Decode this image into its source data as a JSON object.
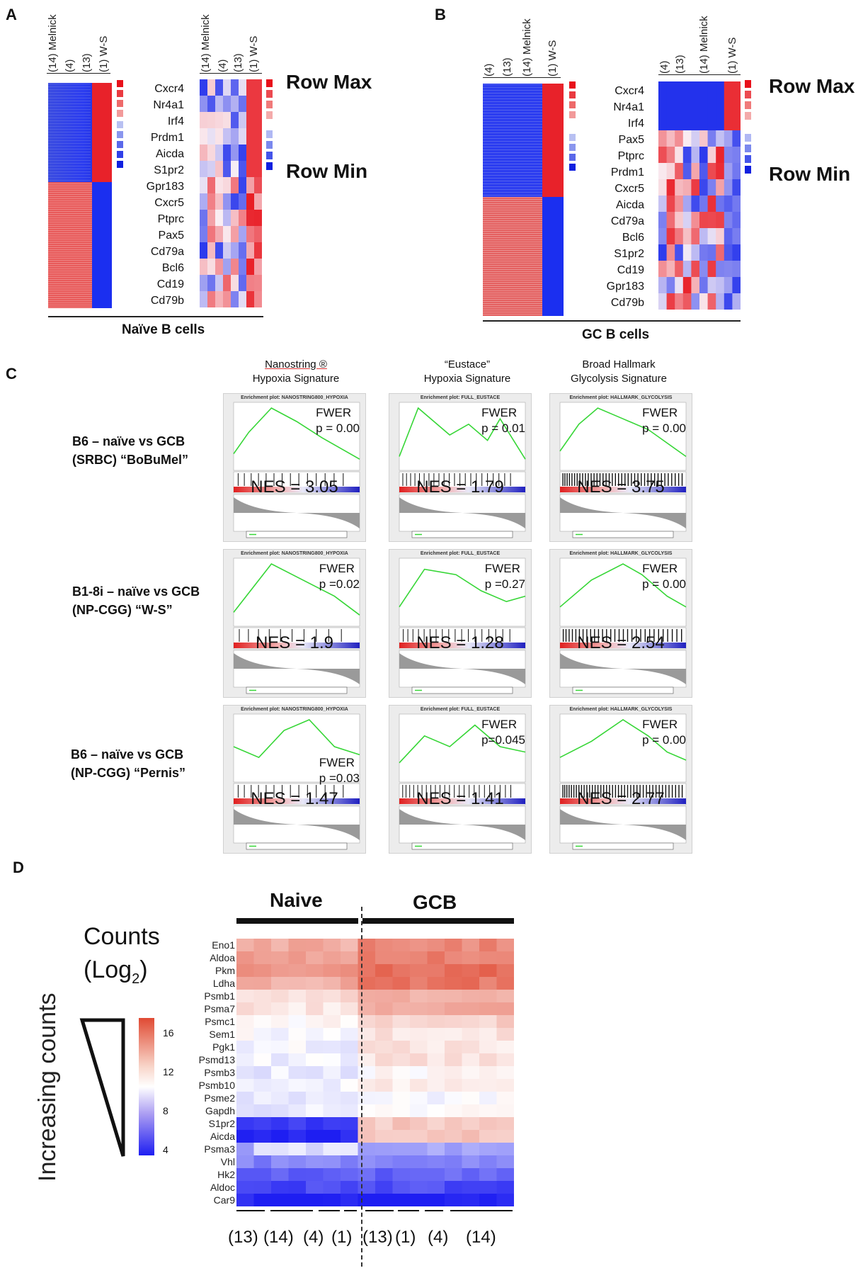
{
  "panels": {
    "a": "A",
    "b": "B",
    "c": "C",
    "d": "D"
  },
  "panel_a": {
    "heat1_cols": [
      "(14) Melnick",
      "(4)",
      "(13)",
      "(1) W-S"
    ],
    "heat2_cols": [
      "(14) Melnick",
      "(4)",
      "(13)",
      "(1) W-S"
    ],
    "genes": [
      "Cxcr4",
      "Nr4a1",
      "Irf4",
      "Prdm1",
      "Aicda",
      "S1pr2",
      "Gpr183",
      "Cxcr5",
      "Ptprc",
      "Pax5",
      "Cd79a",
      "Bcl6",
      "Cd19",
      "Cd79b"
    ],
    "row_max": "Row Max",
    "row_min": "Row Min",
    "caption": "Naïve B cells"
  },
  "panel_b": {
    "heat1_cols": [
      "(4)",
      "(13)",
      "(14) Melnick",
      "(1) W-S"
    ],
    "heat2_cols": [
      "(4)",
      "(13)",
      "(14) Melnick",
      "(1) W-S"
    ],
    "genes": [
      "Cxcr4",
      "Nr4a1",
      "Irf4",
      "Pax5",
      "Ptprc",
      "Prdm1",
      "Cxcr5",
      "Aicda",
      "Cd79a",
      "Bcl6",
      "S1pr2",
      "Cd19",
      "Gpr183",
      "Cd79b"
    ],
    "row_max": "Row Max",
    "row_min": "Row Min",
    "caption": "GC B cells"
  },
  "panel_c": {
    "signatures": [
      {
        "line1": "Nanostring ®",
        "line2": "Hypoxia Signature"
      },
      {
        "line1": "“Eustace”",
        "line2": "Hypoxia Signature"
      },
      {
        "line1": "Broad Hallmark",
        "line2": "Glycolysis Signature"
      }
    ],
    "conditions": [
      {
        "line1": "B6 – naïve vs GCB",
        "line2": "(SRBC) “BoBuMel”"
      },
      {
        "line1": "B1-8i – naïve vs GCB",
        "line2": "(NP-CGG) “W-S”"
      },
      {
        "line1": "B6 – naïve vs GCB",
        "line2": "(NP-CGG) “Pernis”"
      }
    ],
    "plot_titles": [
      "Enrichment plot: NANOSTRING800_HYPOXIA",
      "Enrichment plot: FULL_EUSTACE",
      "Enrichment plot: HALLMARK_GLYCOLYSIS"
    ],
    "fwer_label": "FWER",
    "cells": [
      [
        {
          "p": "p = 0.00",
          "nes": "NES = 3.05"
        },
        {
          "p": "p = 0.01",
          "nes": "NES = 1.79"
        },
        {
          "p": "p = 0.00",
          "nes": "NES = 3.75"
        }
      ],
      [
        {
          "p": "p =0.02",
          "nes": "NES = 1.9"
        },
        {
          "p": "p =0.27",
          "nes": "NES = 1.28"
        },
        {
          "p": "p = 0.00",
          "nes": "NES = 2.54"
        }
      ],
      [
        {
          "p": "p =0.03",
          "nes": "NES = 1.47"
        },
        {
          "p": "p=0.045",
          "nes": "NES = 1.41"
        },
        {
          "p": "p = 0.00",
          "nes": "NES = 2.77"
        }
      ]
    ]
  },
  "panel_d": {
    "groups": {
      "naive": "Naive",
      "gcb": "GCB"
    },
    "legend_title1": "Counts",
    "legend_title2": "(Log",
    "legend_sub": "2",
    "legend_close": ")",
    "legend_ticks": [
      "16",
      "12",
      "8",
      "4"
    ],
    "side_label": "Increasing counts",
    "genes": [
      "Eno1",
      "Aldoa",
      "Pkm",
      "Ldha",
      "Psmb1",
      "Psma7",
      "Psmc1",
      "Sem1",
      "Pgk1",
      "Psmd13",
      "Psmb3",
      "Psmb10",
      "Psme2",
      "Gapdh",
      "S1pr2",
      "Aicda",
      "Psma3",
      "Vhl",
      "Hk2",
      "Aldoc",
      "Car9"
    ],
    "bottom_labels": [
      "(13)",
      "(14)",
      "(4)",
      "(1)",
      "(13)",
      "(1)",
      "(4)",
      "(14)"
    ],
    "colors": {
      "high": "#e04a33",
      "mid": "#ffffff",
      "low": "#2222ee"
    }
  }
}
